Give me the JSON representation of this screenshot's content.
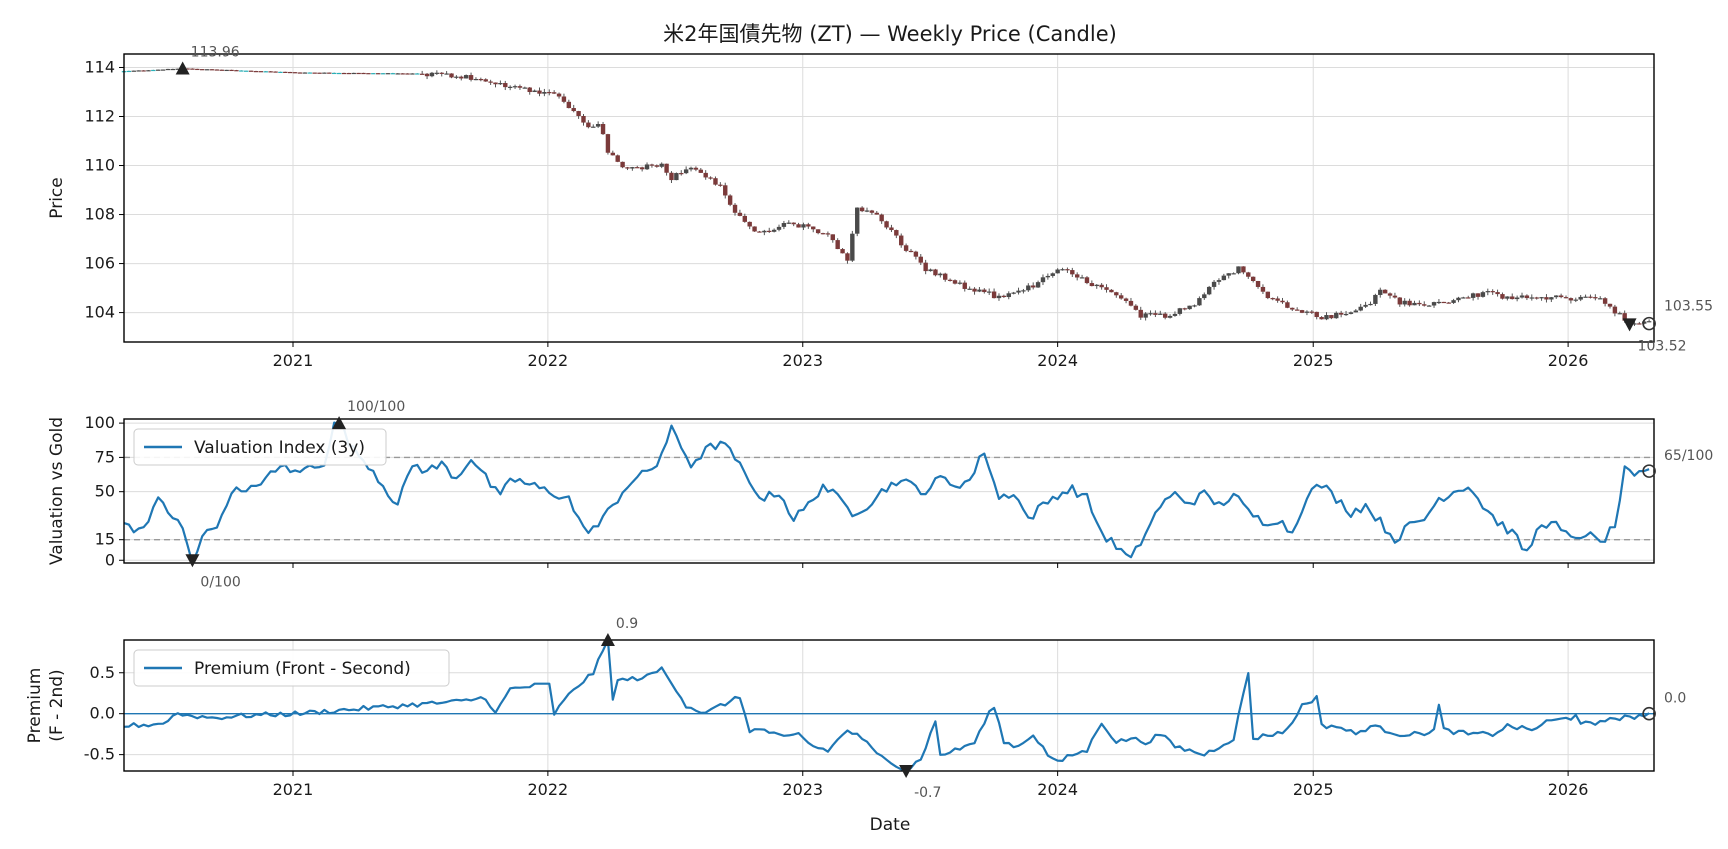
{
  "chart_data": [
    {
      "type": "candlestick",
      "title": "米2年国債先物 (ZT) — Weekly Price (Candle)",
      "ylabel": "Price",
      "xlim": [
        "2020-05-04",
        "2026-05-04"
      ],
      "ylim": [
        102.8,
        114.55
      ],
      "yticks": [
        104,
        106,
        108,
        110,
        112,
        114
      ],
      "xticks": [
        "2021",
        "2022",
        "2023",
        "2024",
        "2025",
        "2026"
      ],
      "grid": true,
      "anchors": [
        [
          "2020-05-04",
          113.85
        ],
        [
          "2020-07-27",
          113.96
        ],
        [
          "2021-01-04",
          113.8
        ],
        [
          "2021-06-28",
          113.75
        ],
        [
          "2021-08-30",
          113.65
        ],
        [
          "2021-10-04",
          113.4
        ],
        [
          "2021-12-06",
          113.1
        ],
        [
          "2022-01-10",
          112.9
        ],
        [
          "2022-02-07",
          112.3
        ],
        [
          "2022-02-28",
          111.5
        ],
        [
          "2022-03-14",
          111.8
        ],
        [
          "2022-03-28",
          110.6
        ],
        [
          "2022-04-25",
          109.8
        ],
        [
          "2022-06-13",
          110.1
        ],
        [
          "2022-06-27",
          109.5
        ],
        [
          "2022-07-25",
          110.0
        ],
        [
          "2022-08-15",
          109.5
        ],
        [
          "2022-09-05",
          109.2
        ],
        [
          "2022-09-26",
          108.0
        ],
        [
          "2022-10-31",
          107.2
        ],
        [
          "2022-12-05",
          107.6
        ],
        [
          "2023-01-02",
          107.5
        ],
        [
          "2023-02-06",
          107.2
        ],
        [
          "2023-03-06",
          106.2
        ],
        [
          "2023-03-20",
          108.2
        ],
        [
          "2023-04-17",
          108.0
        ],
        [
          "2023-05-08",
          107.3
        ],
        [
          "2023-05-29",
          106.6
        ],
        [
          "2023-06-26",
          105.8
        ],
        [
          "2023-08-07",
          105.2
        ],
        [
          "2023-09-04",
          104.9
        ],
        [
          "2023-10-16",
          104.6
        ],
        [
          "2023-11-27",
          105.1
        ],
        [
          "2023-12-25",
          105.7
        ],
        [
          "2024-01-15",
          105.8
        ],
        [
          "2024-02-19",
          105.1
        ],
        [
          "2024-03-25",
          104.8
        ],
        [
          "2024-04-29",
          103.9
        ],
        [
          "2024-06-03",
          103.9
        ],
        [
          "2024-07-15",
          104.3
        ],
        [
          "2024-08-12",
          105.3
        ],
        [
          "2024-09-16",
          105.8
        ],
        [
          "2024-10-07",
          105.2
        ],
        [
          "2024-11-04",
          104.5
        ],
        [
          "2024-12-16",
          104.1
        ],
        [
          "2025-01-13",
          103.8
        ],
        [
          "2025-02-24",
          104.0
        ],
        [
          "2025-03-24",
          104.4
        ],
        [
          "2025-04-07",
          105.0
        ],
        [
          "2025-05-05",
          104.4
        ],
        [
          "2025-06-09",
          104.3
        ],
        [
          "2025-07-21",
          104.5
        ],
        [
          "2025-09-01",
          104.8
        ],
        [
          "2025-10-13",
          104.6
        ],
        [
          "2025-12-15",
          104.6
        ],
        [
          "2026-02-16",
          104.6
        ],
        [
          "2026-03-16",
          103.9
        ],
        [
          "2026-03-30",
          103.52
        ],
        [
          "2026-04-27",
          103.55
        ]
      ],
      "annotations": [
        {
          "text": "113.96",
          "date": "2020-07-27",
          "value": 113.96,
          "marker": "max"
        },
        {
          "text": "103.52",
          "date": "2026-03-30",
          "value": 103.52,
          "marker": "min"
        },
        {
          "text": "103.55",
          "date": "2026-04-27",
          "value": 103.55,
          "marker": "last"
        }
      ]
    },
    {
      "type": "line",
      "ylabel": "Valuation vs Gold",
      "xlim": [
        "2020-05-04",
        "2026-05-04"
      ],
      "ylim": [
        -2,
        103
      ],
      "yticks": [
        0,
        15,
        50,
        75,
        100
      ],
      "reference_lines": [
        75,
        15
      ],
      "series": [
        {
          "name": "Valuation Index (3y)",
          "color": "#1f77b4"
        }
      ],
      "legend": "upper-left",
      "anchors": [
        [
          "2020-05-04",
          28
        ],
        [
          "2020-05-18",
          20
        ],
        [
          "2020-06-08",
          28
        ],
        [
          "2020-06-22",
          45
        ],
        [
          "2020-07-13",
          30
        ],
        [
          "2020-07-27",
          25
        ],
        [
          "2020-08-10",
          0
        ],
        [
          "2020-08-31",
          22
        ],
        [
          "2020-09-21",
          30
        ],
        [
          "2020-10-05",
          52
        ],
        [
          "2020-10-26",
          48
        ],
        [
          "2020-11-16",
          58
        ],
        [
          "2020-12-07",
          64
        ],
        [
          "2020-12-21",
          70
        ],
        [
          "2021-01-04",
          63
        ],
        [
          "2021-01-25",
          68
        ],
        [
          "2021-02-15",
          72
        ],
        [
          "2021-03-01",
          98
        ],
        [
          "2021-03-08",
          100
        ],
        [
          "2021-03-29",
          80
        ],
        [
          "2021-04-19",
          70
        ],
        [
          "2021-05-10",
          55
        ],
        [
          "2021-05-31",
          40
        ],
        [
          "2021-06-21",
          70
        ],
        [
          "2021-07-12",
          65
        ],
        [
          "2021-08-02",
          70
        ],
        [
          "2021-08-23",
          60
        ],
        [
          "2021-09-13",
          75
        ],
        [
          "2021-10-04",
          60
        ],
        [
          "2021-10-25",
          45
        ],
        [
          "2021-11-08",
          60
        ],
        [
          "2021-12-06",
          55
        ],
        [
          "2022-01-03",
          50
        ],
        [
          "2022-01-31",
          45
        ],
        [
          "2022-02-21",
          22
        ],
        [
          "2022-03-14",
          25
        ],
        [
          "2022-04-04",
          40
        ],
        [
          "2022-04-25",
          55
        ],
        [
          "2022-05-16",
          62
        ],
        [
          "2022-06-06",
          70
        ],
        [
          "2022-06-27",
          95
        ],
        [
          "2022-07-25",
          70
        ],
        [
          "2022-08-15",
          80
        ],
        [
          "2022-09-05",
          86
        ],
        [
          "2022-09-26",
          75
        ],
        [
          "2022-10-17",
          55
        ],
        [
          "2022-11-07",
          45
        ],
        [
          "2022-11-28",
          50
        ],
        [
          "2022-12-19",
          30
        ],
        [
          "2023-01-09",
          40
        ],
        [
          "2023-01-30",
          55
        ],
        [
          "2023-02-20",
          45
        ],
        [
          "2023-03-13",
          35
        ],
        [
          "2023-04-03",
          40
        ],
        [
          "2023-04-24",
          50
        ],
        [
          "2023-05-15",
          58
        ],
        [
          "2023-06-05",
          55
        ],
        [
          "2023-06-26",
          50
        ],
        [
          "2023-07-17",
          60
        ],
        [
          "2023-08-07",
          55
        ],
        [
          "2023-08-28",
          58
        ],
        [
          "2023-09-18",
          80
        ],
        [
          "2023-10-09",
          45
        ],
        [
          "2023-10-30",
          50
        ],
        [
          "2023-11-20",
          30
        ],
        [
          "2023-12-11",
          40
        ],
        [
          "2024-01-01",
          48
        ],
        [
          "2024-01-22",
          52
        ],
        [
          "2024-02-12",
          45
        ],
        [
          "2024-03-04",
          20
        ],
        [
          "2024-03-25",
          10
        ],
        [
          "2024-04-15",
          0
        ],
        [
          "2024-05-06",
          20
        ],
        [
          "2024-05-27",
          40
        ],
        [
          "2024-06-17",
          48
        ],
        [
          "2024-07-08",
          42
        ],
        [
          "2024-07-29",
          48
        ],
        [
          "2024-08-19",
          40
        ],
        [
          "2024-09-09",
          48
        ],
        [
          "2024-09-30",
          35
        ],
        [
          "2024-10-21",
          28
        ],
        [
          "2024-11-11",
          30
        ],
        [
          "2024-12-02",
          20
        ],
        [
          "2024-12-23",
          48
        ],
        [
          "2025-01-13",
          55
        ],
        [
          "2025-02-03",
          45
        ],
        [
          "2025-02-24",
          35
        ],
        [
          "2025-03-17",
          40
        ],
        [
          "2025-04-07",
          28
        ],
        [
          "2025-04-28",
          15
        ],
        [
          "2025-05-19",
          25
        ],
        [
          "2025-06-09",
          30
        ],
        [
          "2025-06-30",
          45
        ],
        [
          "2025-07-21",
          50
        ],
        [
          "2025-08-11",
          55
        ],
        [
          "2025-09-01",
          40
        ],
        [
          "2025-09-22",
          28
        ],
        [
          "2025-10-13",
          20
        ],
        [
          "2025-11-03",
          5
        ],
        [
          "2025-11-24",
          28
        ],
        [
          "2025-12-15",
          25
        ],
        [
          "2026-01-05",
          15
        ],
        [
          "2026-01-26",
          20
        ],
        [
          "2026-02-16",
          12
        ],
        [
          "2026-03-09",
          25
        ],
        [
          "2026-03-23",
          65
        ],
        [
          "2026-04-06",
          60
        ],
        [
          "2026-04-27",
          65
        ]
      ],
      "annotations": [
        {
          "text": "100/100",
          "date": "2021-03-08",
          "value": 100,
          "marker": "max"
        },
        {
          "text": "0/100",
          "date": "2020-08-10",
          "value": 0,
          "marker": "min"
        },
        {
          "text": "65/100",
          "date": "2026-04-27",
          "value": 65,
          "marker": "last"
        }
      ]
    },
    {
      "type": "line",
      "xlabel": "Date",
      "ylabel": "Premium\n(F - 2nd)",
      "xlim": [
        "2020-05-04",
        "2026-05-04"
      ],
      "ylim": [
        -0.7,
        0.9
      ],
      "yticks": [
        0.5,
        0.0,
        -0.5
      ],
      "ytick_labels": [
        "0.5",
        "0.0",
        "-0.5"
      ],
      "xticks": [
        "2021",
        "2022",
        "2023",
        "2024",
        "2025",
        "2026"
      ],
      "reference_lines": [
        0
      ],
      "series": [
        {
          "name": "Premium (Front - Second)",
          "color": "#1f77b4"
        }
      ],
      "legend": "upper-left",
      "anchors": [
        [
          "2020-05-04",
          -0.15
        ],
        [
          "2020-06-15",
          -0.13
        ],
        [
          "2020-07-06",
          -0.1
        ],
        [
          "2020-07-13",
          0.0
        ],
        [
          "2020-09-07",
          -0.05
        ],
        [
          "2020-11-02",
          -0.02
        ],
        [
          "2021-01-04",
          0.0
        ],
        [
          "2021-06-07",
          0.1
        ],
        [
          "2021-08-30",
          0.15
        ],
        [
          "2021-10-04",
          0.2
        ],
        [
          "2021-10-18",
          0.0
        ],
        [
          "2021-11-08",
          0.3
        ],
        [
          "2021-12-20",
          0.35
        ],
        [
          "2022-01-03",
          0.35
        ],
        [
          "2022-01-10",
          0.0
        ],
        [
          "2022-02-07",
          0.3
        ],
        [
          "2022-03-07",
          0.5
        ],
        [
          "2022-03-28",
          0.9
        ],
        [
          "2022-04-04",
          0.2
        ],
        [
          "2022-04-11",
          0.4
        ],
        [
          "2022-05-23",
          0.45
        ],
        [
          "2022-06-13",
          0.55
        ],
        [
          "2022-07-04",
          0.3
        ],
        [
          "2022-07-18",
          0.1
        ],
        [
          "2022-08-15",
          0.0
        ],
        [
          "2022-09-05",
          0.1
        ],
        [
          "2022-10-03",
          0.2
        ],
        [
          "2022-10-17",
          -0.2
        ],
        [
          "2022-11-07",
          -0.2
        ],
        [
          "2022-12-05",
          -0.3
        ],
        [
          "2022-12-26",
          -0.25
        ],
        [
          "2023-01-16",
          -0.4
        ],
        [
          "2023-02-06",
          -0.45
        ],
        [
          "2023-03-06",
          -0.2
        ],
        [
          "2023-03-27",
          -0.3
        ],
        [
          "2023-04-17",
          -0.5
        ],
        [
          "2023-05-08",
          -0.58
        ],
        [
          "2023-05-29",
          -0.7
        ],
        [
          "2023-06-19",
          -0.55
        ],
        [
          "2023-07-10",
          -0.1
        ],
        [
          "2023-07-17",
          -0.5
        ],
        [
          "2023-08-07",
          -0.45
        ],
        [
          "2023-09-04",
          -0.35
        ],
        [
          "2023-09-25",
          0.0
        ],
        [
          "2023-10-02",
          0.1
        ],
        [
          "2023-10-16",
          -0.35
        ],
        [
          "2023-11-06",
          -0.4
        ],
        [
          "2023-11-27",
          -0.25
        ],
        [
          "2023-12-18",
          -0.5
        ],
        [
          "2024-01-01",
          -0.6
        ],
        [
          "2024-01-22",
          -0.5
        ],
        [
          "2024-02-12",
          -0.45
        ],
        [
          "2024-03-04",
          -0.1
        ],
        [
          "2024-03-25",
          -0.35
        ],
        [
          "2024-04-15",
          -0.3
        ],
        [
          "2024-05-06",
          -0.35
        ],
        [
          "2024-05-27",
          -0.25
        ],
        [
          "2024-06-17",
          -0.4
        ],
        [
          "2024-07-08",
          -0.45
        ],
        [
          "2024-07-29",
          -0.5
        ],
        [
          "2024-08-19",
          -0.4
        ],
        [
          "2024-09-09",
          -0.3
        ],
        [
          "2024-09-30",
          0.5
        ],
        [
          "2024-10-07",
          -0.3
        ],
        [
          "2024-11-04",
          -0.25
        ],
        [
          "2024-11-25",
          -0.2
        ],
        [
          "2024-12-16",
          0.1
        ],
        [
          "2025-01-06",
          0.2
        ],
        [
          "2025-01-13",
          -0.15
        ],
        [
          "2025-02-03",
          -0.15
        ],
        [
          "2025-03-03",
          -0.25
        ],
        [
          "2025-03-24",
          -0.15
        ],
        [
          "2025-04-14",
          -0.2
        ],
        [
          "2025-05-05",
          -0.25
        ],
        [
          "2025-06-02",
          -0.25
        ],
        [
          "2025-06-23",
          -0.2
        ],
        [
          "2025-06-30",
          0.1
        ],
        [
          "2025-07-07",
          -0.2
        ],
        [
          "2025-08-11",
          -0.25
        ],
        [
          "2025-09-15",
          -0.25
        ],
        [
          "2025-10-06",
          -0.15
        ],
        [
          "2025-11-10",
          -0.2
        ],
        [
          "2025-12-01",
          -0.1
        ],
        [
          "2026-01-05",
          -0.05
        ],
        [
          "2026-01-12",
          0.0
        ],
        [
          "2026-01-19",
          -0.1
        ],
        [
          "2026-02-09",
          -0.15
        ],
        [
          "2026-03-02",
          -0.05
        ],
        [
          "2026-03-30",
          -0.05
        ],
        [
          "2026-04-27",
          0.0
        ]
      ],
      "annotations": [
        {
          "text": "0.9",
          "date": "2022-03-28",
          "value": 0.9,
          "marker": "max"
        },
        {
          "text": "-0.7",
          "date": "2023-05-29",
          "value": -0.7,
          "marker": "min"
        },
        {
          "text": "0.0",
          "date": "2026-04-27",
          "value": 0.0,
          "marker": "last"
        }
      ]
    }
  ]
}
